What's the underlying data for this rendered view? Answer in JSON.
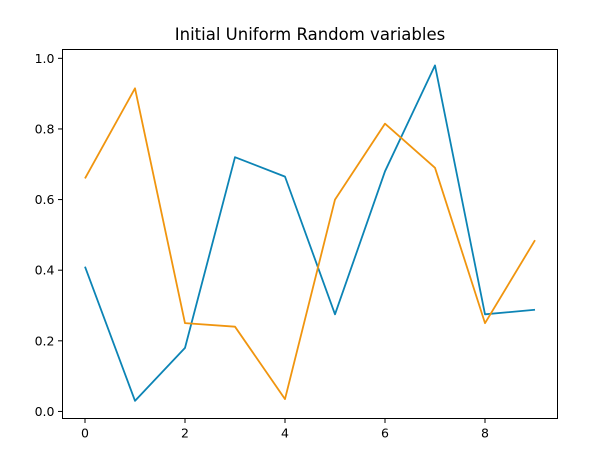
{
  "chart_data": {
    "type": "line",
    "title": "Initial Uniform Random variables",
    "xlabel": "",
    "ylabel": "",
    "xlim": [
      -0.45,
      9.45
    ],
    "ylim": [
      -0.02,
      1.025
    ],
    "xticks": [
      0,
      2,
      4,
      6,
      8
    ],
    "xtick_labels": [
      "0",
      "2",
      "4",
      "6",
      "8"
    ],
    "yticks": [
      0.0,
      0.2,
      0.4,
      0.6,
      0.8,
      1.0
    ],
    "ytick_labels": [
      "0.0",
      "0.2",
      "0.4",
      "0.6",
      "0.8",
      "1.0"
    ],
    "grid": false,
    "x": [
      0,
      1,
      2,
      3,
      4,
      5,
      6,
      7,
      8,
      9
    ],
    "series": [
      {
        "color": "#0c84b5",
        "values": [
          0.41,
          0.03,
          0.18,
          0.72,
          0.665,
          0.275,
          0.68,
          0.98,
          0.275,
          0.288
        ]
      },
      {
        "color": "#f0950f",
        "values": [
          0.66,
          0.915,
          0.25,
          0.24,
          0.035,
          0.6,
          0.815,
          0.69,
          0.25,
          0.485
        ]
      }
    ]
  }
}
